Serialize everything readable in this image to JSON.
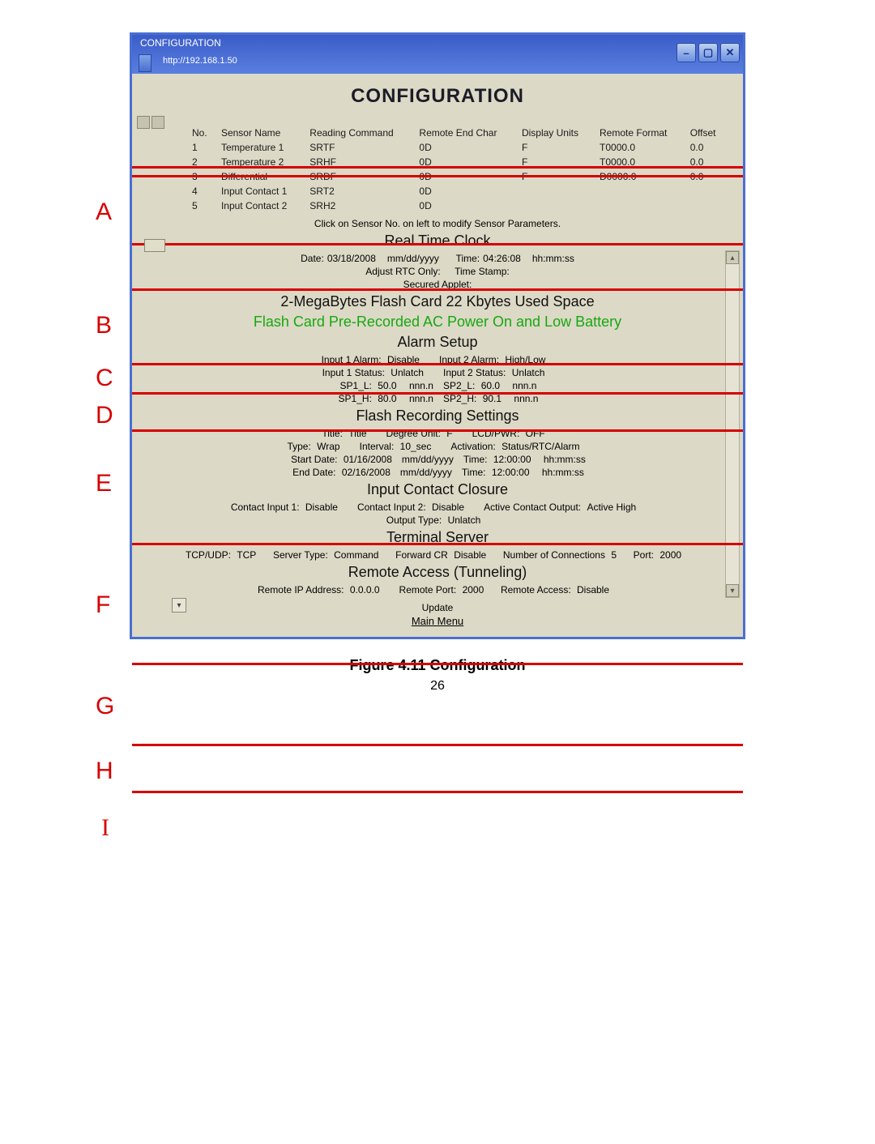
{
  "window": {
    "top_label": "CONFIGURATION",
    "url": "http://192.168.1.50"
  },
  "page_title": "CONFIGURATION",
  "sensor_table": {
    "headers": [
      "No.",
      "Sensor Name",
      "Reading Command",
      "Remote End Char",
      "Display Units",
      "Remote Format",
      "Offset"
    ],
    "rows": [
      [
        "1",
        "Temperature 1",
        "SRTF",
        "0D",
        "F",
        "T0000.0",
        "0.0"
      ],
      [
        "2",
        "Temperature 2",
        "SRHF",
        "0D",
        "F",
        "T0000.0",
        "0.0"
      ],
      [
        "3",
        "Differential",
        "SRDF",
        "0D",
        "F",
        "D0000.0",
        "0.0"
      ],
      [
        "4",
        "Input Contact 1",
        "SRT2",
        "0D",
        "",
        "",
        ""
      ],
      [
        "5",
        "Input Contact 2",
        "SRH2",
        "0D",
        "",
        "",
        ""
      ]
    ],
    "hint": "Click on Sensor No. on left to modify Sensor Parameters."
  },
  "rtc": {
    "title": "Real Time Clock",
    "date_label": "Date:",
    "date_value": "03/18/2008",
    "date_fmt": "mm/dd/yyyy",
    "time_label": "Time:",
    "time_value": "04:26:08",
    "time_fmt": "hh:mm:ss",
    "adjust_label": "Adjust RTC Only:",
    "timestamp_label": "Time Stamp:",
    "secured_label": "Secured Applet:"
  },
  "flash_card": "2-MegaBytes Flash Card 22 Kbytes Used Space",
  "flash_note": "Flash Card Pre-Recorded AC Power On and Low Battery",
  "alarm": {
    "title": "Alarm Setup",
    "i1a_label": "Input 1 Alarm:",
    "i1a_val": "Disable",
    "i2a_label": "Input 2 Alarm:",
    "i2a_val": "High/Low",
    "i1s_label": "Input 1 Status:",
    "i1s_val": "Unlatch",
    "i2s_label": "Input 2 Status:",
    "i2s_val": "Unlatch",
    "sp1l_label": "SP1_L:",
    "sp1l_val": "50.0",
    "nnn": "nnn.n",
    "sp2l_label": "SP2_L:",
    "sp2l_val": "60.0",
    "sp1h_label": "SP1_H:",
    "sp1h_val": "80.0",
    "sp2h_label": "SP2_H:",
    "sp2h_val": "90.1"
  },
  "frs": {
    "title": "Flash Recording Settings",
    "title_label": "Title:",
    "title_val": "Title",
    "deg_label": "Degree Unit:",
    "deg_val": "F",
    "lcd_label": "LCD/PWR:",
    "lcd_val": "OFF",
    "type_label": "Type:",
    "type_val": "Wrap",
    "intv_label": "Interval:",
    "intv_val": "10_sec",
    "act_label": "Activation:",
    "act_val": "Status/RTC/Alarm",
    "sd_label": "Start Date:",
    "sd_val": "01/16/2008",
    "sd_fmt": "mm/dd/yyyy",
    "st_label": "Time:",
    "st_val": "12:00:00",
    "st_fmt": "hh:mm:ss",
    "ed_label": "End Date:",
    "ed_val": "02/16/2008",
    "ed_fmt": "mm/dd/yyyy",
    "et_label": "Time:",
    "et_val": "12:00:00",
    "et_fmt": "hh:mm:ss"
  },
  "icc": {
    "title": "Input Contact Closure",
    "c1_label": "Contact Input 1:",
    "c1_val": "Disable",
    "c2_label": "Contact Input 2:",
    "c2_val": "Disable",
    "aco_label": "Active Contact Output:",
    "aco_val": "Active High",
    "ot_label": "Output Type:",
    "ot_val": "Unlatch"
  },
  "ts": {
    "title": "Terminal Server",
    "tu_label": "TCP/UDP:",
    "tu_val": "TCP",
    "st_label": "Server Type:",
    "st_val": "Command",
    "fcr_label": "Forward CR",
    "fcr_val": "Disable",
    "nc_label": "Number of Connections",
    "nc_val": "5",
    "port_label": "Port:",
    "port_val": "2000"
  },
  "rat": {
    "title": "Remote Access (Tunneling)",
    "rip_label": "Remote IP Address:",
    "rip_val": "0.0.0.0",
    "rp_label": "Remote Port:",
    "rp_val": "2000",
    "ra_label": "Remote Access:",
    "ra_val": "Disable",
    "upd": "Update",
    "mm": "Main Menu"
  },
  "caption": "Figure 4.11  Configuration",
  "page_num": "26",
  "side": {
    "A": "A",
    "B": "B",
    "C": "C",
    "D": "D",
    "E": "E",
    "F": "F",
    "G": "G",
    "H": "H",
    "I": "I"
  }
}
